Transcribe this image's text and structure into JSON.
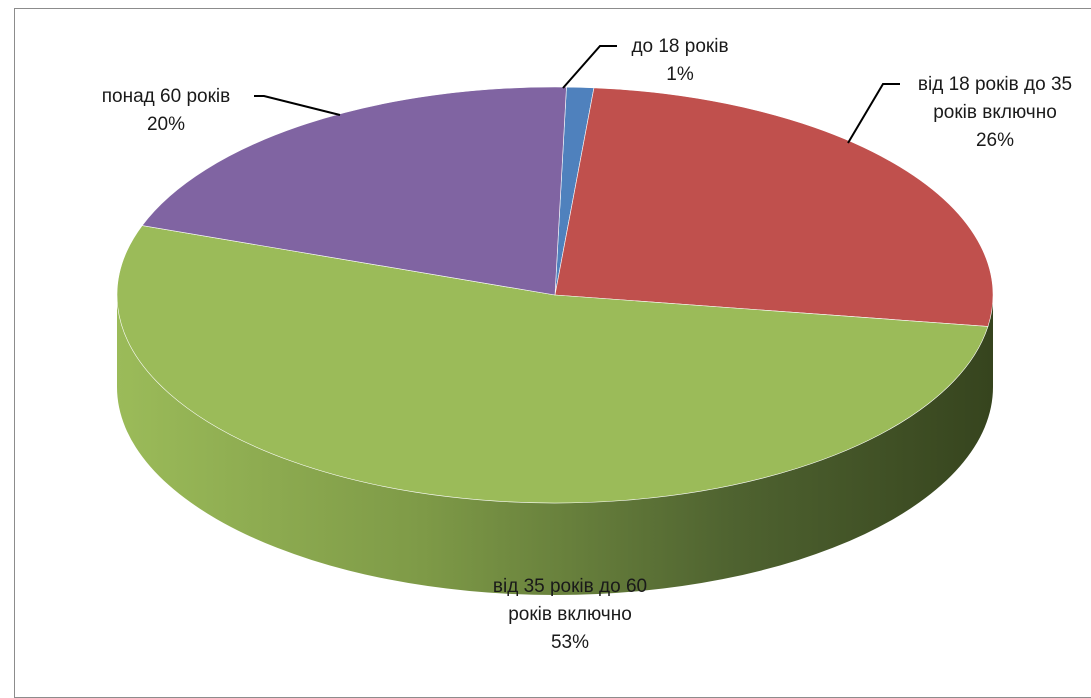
{
  "chart_data": {
    "type": "pie",
    "title": "",
    "categories": [
      "до 18 років",
      "від 18 років до 35 років включно",
      "від 35 років до 60 років включно",
      "понад 60 років"
    ],
    "values": [
      1,
      26,
      53,
      20
    ],
    "percent_labels": [
      "1%",
      "26%",
      "53%",
      "20%"
    ],
    "label_lines": [
      [
        "до 18 років"
      ],
      [
        "від 18 років до 35",
        "років включно"
      ],
      [
        "від 35 років до 60",
        "років включно"
      ],
      [
        "понад 60 років"
      ]
    ],
    "colors": [
      "#4F81BD",
      "#C0504D",
      "#9BBB59",
      "#8064A2"
    ],
    "legend": "none",
    "style": "3d"
  }
}
